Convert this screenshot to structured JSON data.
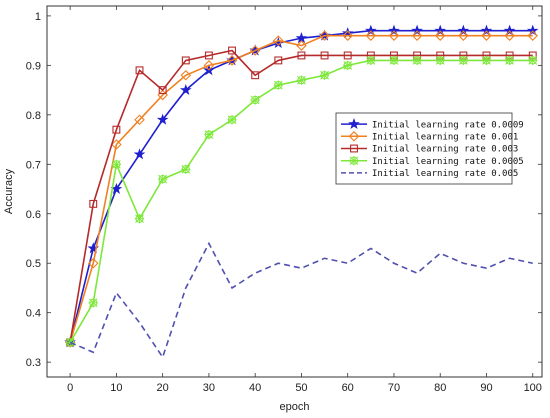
{
  "chart_data": {
    "type": "line",
    "xlabel": "epoch",
    "ylabel": "Accuracy",
    "xlim": [
      -5,
      102
    ],
    "ylim": [
      0.27,
      1.02
    ],
    "xticks": [
      0,
      10,
      20,
      30,
      40,
      50,
      60,
      70,
      80,
      90,
      100
    ],
    "yticks": [
      0.3,
      0.4,
      0.5,
      0.6,
      0.7,
      0.8,
      0.9,
      1
    ],
    "grid": false,
    "legend_position": "center-right",
    "series": [
      {
        "name": "Initial learning rate 0.0009",
        "color": "#1f1fcf",
        "line": "solid",
        "marker": "star",
        "x": [
          0,
          5,
          10,
          15,
          20,
          25,
          30,
          35,
          40,
          45,
          50,
          55,
          60,
          65,
          70,
          75,
          80,
          85,
          90,
          95,
          100
        ],
        "y": [
          0.34,
          0.53,
          0.65,
          0.72,
          0.79,
          0.85,
          0.89,
          0.91,
          0.93,
          0.945,
          0.955,
          0.96,
          0.965,
          0.97,
          0.97,
          0.97,
          0.97,
          0.97,
          0.97,
          0.97,
          0.97
        ]
      },
      {
        "name": "Initial learning rate 0.001",
        "color": "#f08020",
        "line": "solid",
        "marker": "diamond",
        "x": [
          0,
          5,
          10,
          15,
          20,
          25,
          30,
          35,
          40,
          45,
          50,
          55,
          60,
          65,
          70,
          75,
          80,
          85,
          90,
          95,
          100
        ],
        "y": [
          0.34,
          0.5,
          0.74,
          0.79,
          0.84,
          0.88,
          0.9,
          0.91,
          0.93,
          0.95,
          0.94,
          0.96,
          0.96,
          0.96,
          0.96,
          0.96,
          0.96,
          0.96,
          0.96,
          0.96,
          0.96
        ]
      },
      {
        "name": "Initial learning rate 0.003",
        "color": "#b52a2a",
        "line": "solid",
        "marker": "square",
        "x": [
          0,
          5,
          10,
          15,
          20,
          25,
          30,
          35,
          40,
          45,
          50,
          55,
          60,
          65,
          70,
          75,
          80,
          85,
          90,
          95,
          100
        ],
        "y": [
          0.34,
          0.62,
          0.77,
          0.89,
          0.85,
          0.91,
          0.92,
          0.93,
          0.88,
          0.91,
          0.92,
          0.92,
          0.92,
          0.92,
          0.92,
          0.92,
          0.92,
          0.92,
          0.92,
          0.92,
          0.92
        ]
      },
      {
        "name": "Initial learning rate 0.0005",
        "color": "#7de83a",
        "line": "solid",
        "marker": "asterisk",
        "x": [
          0,
          5,
          10,
          15,
          20,
          25,
          30,
          35,
          40,
          45,
          50,
          55,
          60,
          65,
          70,
          75,
          80,
          85,
          90,
          95,
          100
        ],
        "y": [
          0.34,
          0.42,
          0.7,
          0.59,
          0.67,
          0.69,
          0.76,
          0.79,
          0.83,
          0.86,
          0.87,
          0.88,
          0.9,
          0.91,
          0.91,
          0.91,
          0.91,
          0.91,
          0.91,
          0.91,
          0.91
        ]
      },
      {
        "name": "Initial learning rate 0.005",
        "color": "#5050b0",
        "line": "dashed",
        "marker": "none",
        "x": [
          0,
          5,
          10,
          15,
          20,
          25,
          30,
          35,
          40,
          45,
          50,
          55,
          60,
          65,
          70,
          75,
          80,
          85,
          90,
          95,
          100
        ],
        "y": [
          0.34,
          0.32,
          0.44,
          0.38,
          0.31,
          0.45,
          0.54,
          0.45,
          0.48,
          0.5,
          0.49,
          0.51,
          0.5,
          0.53,
          0.5,
          0.48,
          0.52,
          0.5,
          0.49,
          0.51,
          0.5
        ]
      }
    ]
  }
}
